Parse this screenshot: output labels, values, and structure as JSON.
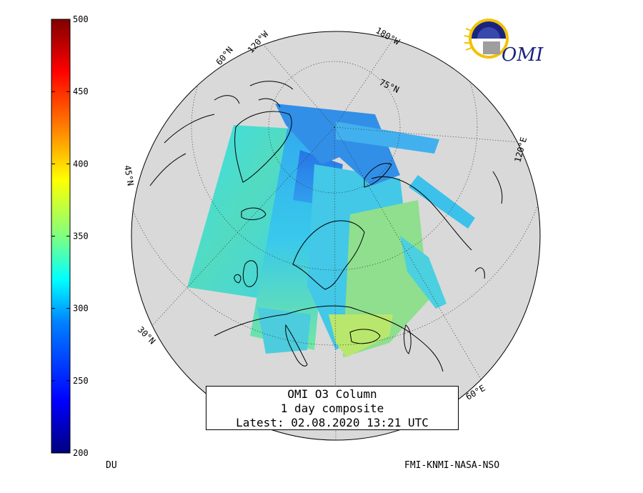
{
  "colorbar": {
    "ticks": [
      "500",
      "450",
      "400",
      "350",
      "300",
      "250",
      "200"
    ],
    "min": 200,
    "max": 500,
    "colors": [
      "#00007f",
      "#0000ff",
      "#0080ff",
      "#00ffff",
      "#80ff80",
      "#ffff00",
      "#ff8000",
      "#ff0000",
      "#800000"
    ],
    "unit_label": "DU"
  },
  "logo": {
    "text": "OMI"
  },
  "graticule_labels": {
    "lon_120w": "120°W",
    "lon_180w": "180°W",
    "lon_120e": "120°E",
    "lon_60e": "60°E",
    "lat_60n_top": "60°N",
    "lat_75n": "75°N",
    "lat_45n": "45°N",
    "lat_30n": "30°N"
  },
  "info_box": {
    "line1": "OMI O3 Column",
    "line2": "1 day composite",
    "line3": "Latest: 02.08.2020 13:21 UTC"
  },
  "credit": "FMI-KNMI-NASA-NSO"
}
